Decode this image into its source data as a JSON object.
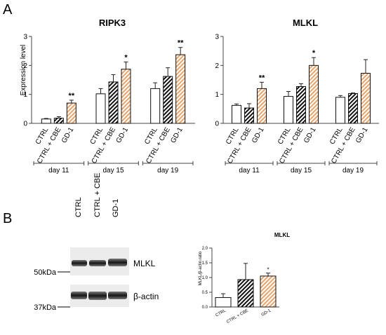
{
  "panels": {
    "a": "A",
    "b": "B"
  },
  "colors": {
    "orange": "#e8a46a",
    "axis": "#444444",
    "error": "#222222"
  },
  "charts": {
    "ripk3": {
      "title": "RIPK3",
      "ylabel": "Expression level",
      "ylim": [
        0,
        3
      ],
      "yticks": [
        "0",
        "1",
        "2",
        "3"
      ]
    },
    "mlkl": {
      "title": "MLKL",
      "ylim": [
        0,
        3
      ],
      "yticks": [
        "0",
        "1",
        "2",
        "3"
      ]
    },
    "mlkl_ratio": {
      "title": "MLKL",
      "ylabel": "MLKL/β-actin ratio",
      "ylim": [
        0,
        2.0
      ],
      "yticks": [
        "0.0",
        "0.5",
        "1.0",
        "1.5",
        "2.0"
      ]
    }
  },
  "western": {
    "lanes": [
      "CTRL",
      "CTRL + CBE",
      "GD-1"
    ],
    "markers": [
      "50kDa",
      "37kDa"
    ],
    "bands": [
      "MLKL",
      "β-actin"
    ]
  },
  "chart_data": [
    {
      "type": "bar",
      "title": "RIPK3",
      "xlabel": "",
      "ylabel": "Expression level",
      "ylim": [
        0,
        3
      ],
      "groups": [
        "day 11",
        "day 15",
        "day 19"
      ],
      "categories": [
        "CTRL",
        "CTRL + CBE",
        "GD-1"
      ],
      "series": [
        {
          "values": [
            0.15,
            1.02,
            1.2
          ],
          "errors": [
            0.02,
            0.18,
            0.2
          ],
          "pattern": "white"
        },
        {
          "values": [
            0.18,
            1.43,
            1.62
          ],
          "errors": [
            0.05,
            0.25,
            0.3
          ],
          "pattern": "black-hatch"
        },
        {
          "values": [
            0.7,
            1.87,
            2.37
          ],
          "errors": [
            0.1,
            0.25,
            0.25
          ],
          "pattern": "orange-hatch"
        }
      ],
      "annotations": [
        {
          "group": "day 11",
          "series": 2,
          "text": "**"
        },
        {
          "group": "day 15",
          "series": 2,
          "text": "*"
        },
        {
          "group": "day 19",
          "series": 2,
          "text": "**"
        }
      ]
    },
    {
      "type": "bar",
      "title": "MLKL",
      "xlabel": "",
      "ylabel": "",
      "ylim": [
        0,
        3
      ],
      "groups": [
        "day 11",
        "day 15",
        "day 19"
      ],
      "categories": [
        "CTRL",
        "CTRL + CBE",
        "GD-1"
      ],
      "series": [
        {
          "values": [
            0.62,
            0.93,
            0.9
          ],
          "errors": [
            0.05,
            0.17,
            0.06
          ],
          "pattern": "white"
        },
        {
          "values": [
            0.53,
            1.27,
            1.03
          ],
          "errors": [
            0.15,
            0.1,
            0.02
          ],
          "pattern": "black-hatch"
        },
        {
          "values": [
            1.2,
            2.0,
            1.73
          ],
          "errors": [
            0.22,
            0.27,
            0.47
          ],
          "pattern": "orange-hatch"
        }
      ],
      "annotations": [
        {
          "group": "day 11",
          "series": 2,
          "text": "**"
        },
        {
          "group": "day 15",
          "series": 2,
          "text": "*"
        }
      ]
    },
    {
      "type": "bar",
      "title": "MLKL",
      "xlabel": "",
      "ylabel": "MLKL/β-actin ratio",
      "ylim": [
        0,
        2.0
      ],
      "categories": [
        "CTRL",
        "CTRL + CBE",
        "GD-1"
      ],
      "values": [
        0.32,
        0.93,
        1.05
      ],
      "errors": [
        0.13,
        0.55,
        0.1
      ],
      "patterns": [
        "white",
        "black-hatch",
        "orange-hatch"
      ],
      "annotations": [
        {
          "category": "GD-1",
          "text": "*"
        }
      ]
    }
  ]
}
